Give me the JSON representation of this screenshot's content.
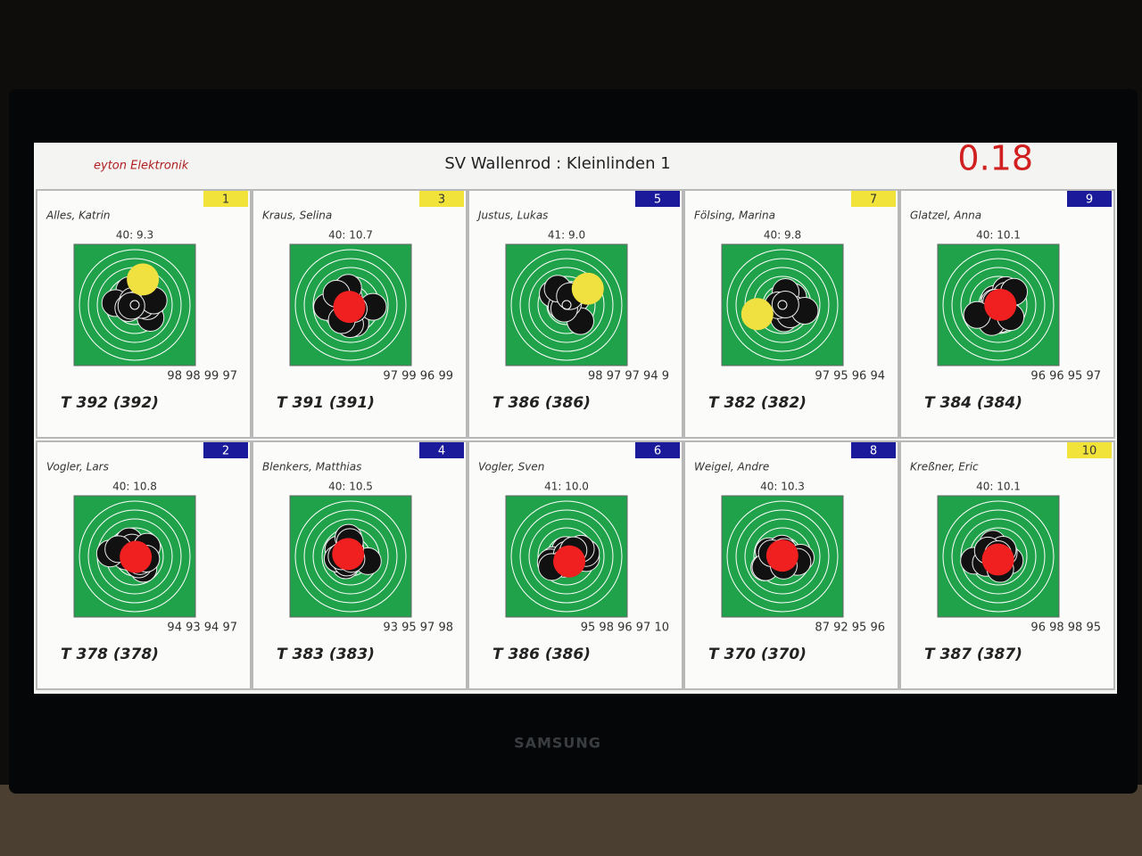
{
  "header": {
    "brand": "eyton Elektronik",
    "title": "SV Wallenrod : Kleinlinden 1",
    "clock": "0.18"
  },
  "tv_brand": "SAMSUNG",
  "cards": [
    {
      "lane": 1,
      "badge_color": "#f2e33a",
      "name": "Alles, Katrin",
      "last": "40:  9.3",
      "series": "98 98 99 97",
      "total": "T 392 (392)",
      "shot_color": "#f0e040"
    },
    {
      "lane": 3,
      "badge_color": "#f2e33a",
      "name": "Kraus, Selina",
      "last": "40:  10.7",
      "series": "97 99 96 99",
      "total": "T 391 (391)",
      "shot_color": "#f02020"
    },
    {
      "lane": 5,
      "badge_color": "#1a1a9a",
      "name": "Justus, Lukas",
      "last": "41:  9.0",
      "series": "98 97 97 94 9",
      "total": "T 386 (386)",
      "shot_color": "#f0e040"
    },
    {
      "lane": 7,
      "badge_color": "#f2e33a",
      "name": "Fölsing, Marina",
      "last": "40:  9.8",
      "series": "97 95 96 94",
      "total": "T 382 (382)",
      "shot_color": "#f0e040"
    },
    {
      "lane": 9,
      "badge_color": "#1a1a9a",
      "name": "Glatzel, Anna",
      "last": "40:  10.1",
      "series": "96 96 95 97",
      "total": "T 384 (384)",
      "shot_color": "#f02020"
    },
    {
      "lane": 2,
      "badge_color": "#1a1a9a",
      "name": "Vogler, Lars",
      "last": "40:  10.8",
      "series": "94 93 94 97",
      "total": "T 378 (378)",
      "shot_color": "#f02020"
    },
    {
      "lane": 4,
      "badge_color": "#1a1a9a",
      "name": "Blenkers, Matthias",
      "last": "40:  10.5",
      "series": "93 95 97 98",
      "total": "T 383 (383)",
      "shot_color": "#f02020"
    },
    {
      "lane": 6,
      "badge_color": "#1a1a9a",
      "name": "Vogler, Sven",
      "last": "41:  10.0",
      "series": "95 98 96 97 10",
      "total": "T 386 (386)",
      "shot_color": "#f02020"
    },
    {
      "lane": 8,
      "badge_color": "#1a1a9a",
      "name": "Weigel, Andre",
      "last": "40:  10.3",
      "series": "87 92 95 96",
      "total": "T 370 (370)",
      "shot_color": "#f02020"
    },
    {
      "lane": 10,
      "badge_color": "#f2e33a",
      "name": "Kreßner, Eric",
      "last": "40:  10.1",
      "series": "96 98 98 95",
      "total": "T 387 (387)",
      "shot_color": "#f02020"
    }
  ]
}
